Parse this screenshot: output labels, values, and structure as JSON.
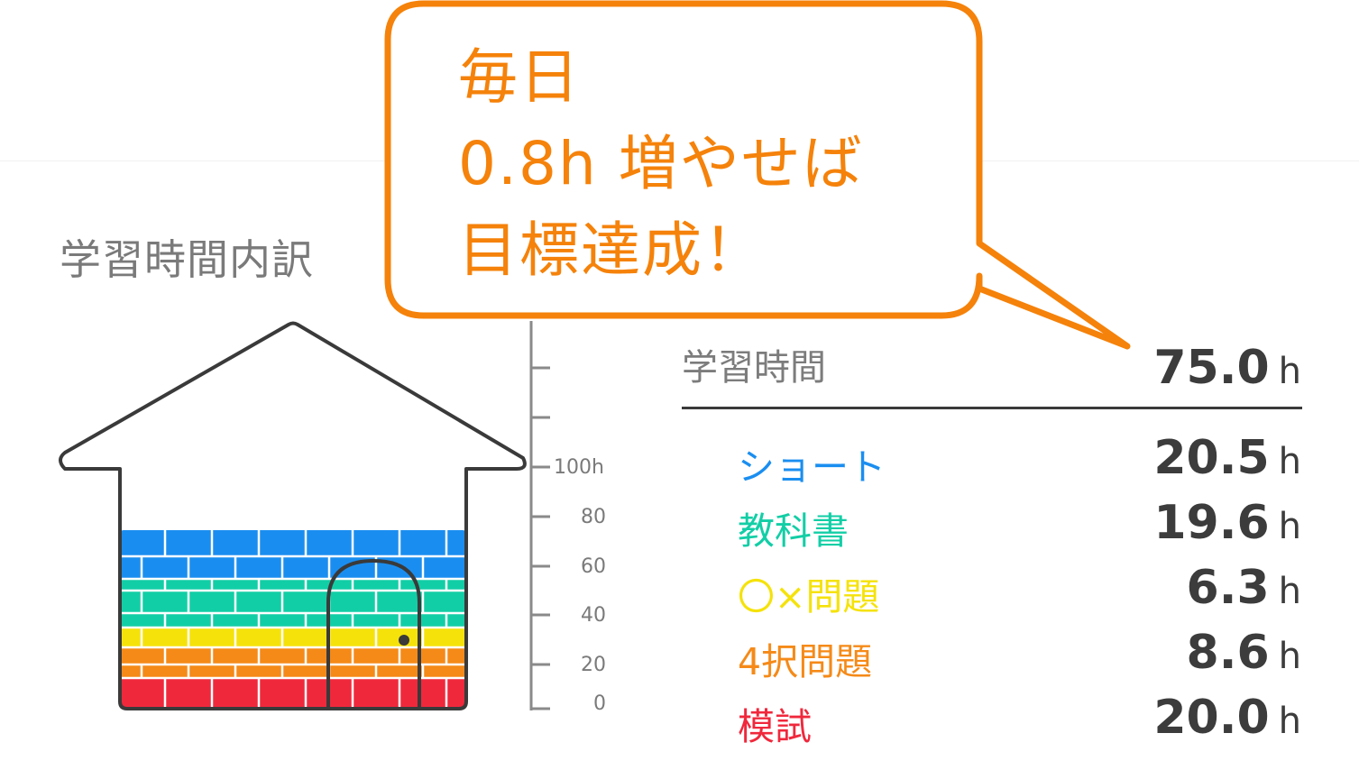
{
  "section_title": "学習時間内訳",
  "scale": {
    "ticks": [
      "100h",
      "80",
      "60",
      "40",
      "20",
      "0"
    ]
  },
  "summary": {
    "label": "学習時間",
    "value": "75.0",
    "unit": "h"
  },
  "categories": [
    {
      "label": "ショート",
      "value": "20.5",
      "unit": "h",
      "color": "#1a8ef0"
    },
    {
      "label": "教科書",
      "value": "19.6",
      "unit": "h",
      "color": "#12cea6"
    },
    {
      "label": "〇×問題",
      "value": "6.3",
      "unit": "h",
      "color": "#f5e20a"
    },
    {
      "label": "4択問題",
      "value": "8.6",
      "unit": "h",
      "color": "#f58a18"
    },
    {
      "label": "模試",
      "value": "20.0",
      "unit": "h",
      "color": "#f0283c"
    }
  ],
  "callout": {
    "line1": "毎日",
    "line2": "0.8h 増やせば",
    "line3": "目標達成！",
    "color": "#f5820a"
  }
}
